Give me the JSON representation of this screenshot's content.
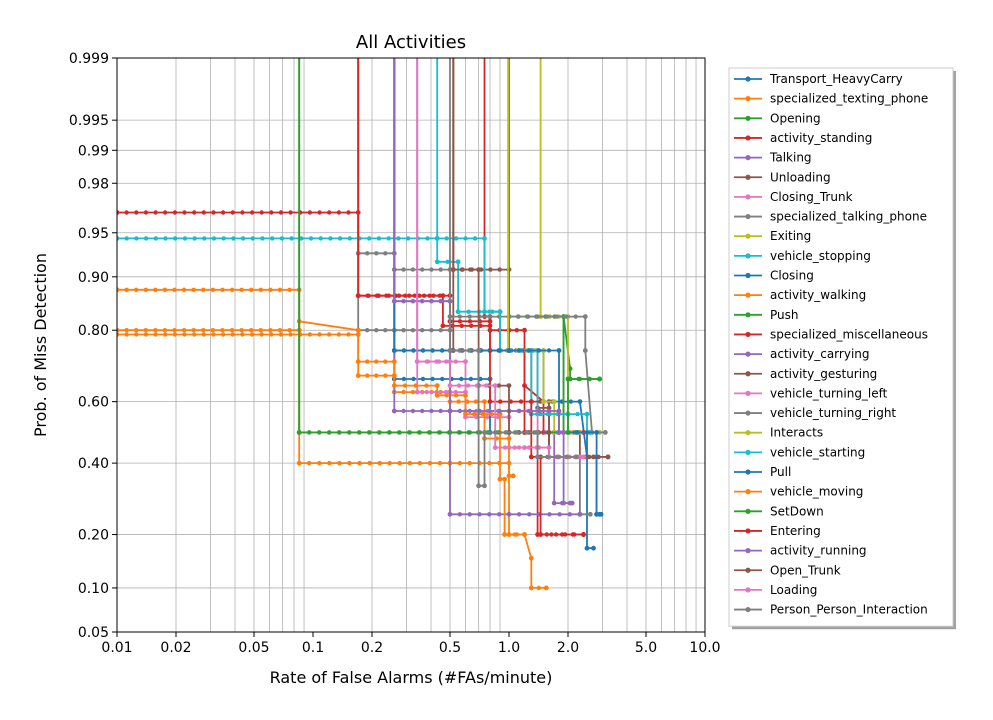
{
  "chart_data": {
    "type": "line",
    "title": "All Activities",
    "xlabel": "Rate of False Alarms (#FAs/minute)",
    "ylabel": "Prob. of Miss Detection",
    "x_scale": "log",
    "y_scale": "normal-deviate",
    "xlim": [
      0.01,
      10.0
    ],
    "ylim": [
      0.05,
      0.999
    ],
    "x_ticks": [
      0.01,
      0.02,
      0.05,
      0.1,
      0.2,
      0.5,
      1.0,
      2.0,
      5.0,
      10.0
    ],
    "x_tick_labels": [
      "0.01",
      "0.02",
      "0.05",
      "0.1",
      "0.2",
      "0.5",
      "1.0",
      "2.0",
      "5.0",
      "10.0"
    ],
    "y_ticks": [
      0.05,
      0.1,
      0.2,
      0.4,
      0.6,
      0.8,
      0.9,
      0.95,
      0.98,
      0.99,
      0.995,
      0.999
    ],
    "y_tick_labels": [
      "0.05",
      "0.10",
      "0.20",
      "0.40",
      "0.60",
      "0.80",
      "0.90",
      "0.95",
      "0.98",
      "0.99",
      "0.995",
      "0.999"
    ],
    "grid": true,
    "legend_position": "right",
    "series": [
      {
        "name": "Transport_HeavyCarry",
        "color": "#1f77b4",
        "points": [
          [
            0.26,
            0.999
          ],
          [
            0.26,
            0.75
          ],
          [
            0.8,
            0.75
          ],
          [
            1.5,
            0.75
          ],
          [
            1.5,
            0.6
          ],
          [
            2.3,
            0.6
          ],
          [
            2.5,
            0.42
          ],
          [
            2.5,
            0.17
          ],
          [
            2.7,
            0.17
          ]
        ]
      },
      {
        "name": "specialized_texting_phone",
        "color": "#ff7f0e",
        "points": [
          [
            0.01,
            0.88
          ],
          [
            0.085,
            0.88
          ],
          [
            0.085,
            0.4
          ],
          [
            0.5,
            0.4
          ],
          [
            1.0,
            0.4
          ],
          [
            1.0,
            0.2
          ],
          [
            1.2,
            0.2
          ],
          [
            1.3,
            0.15
          ],
          [
            1.3,
            0.1
          ],
          [
            1.55,
            0.1
          ]
        ]
      },
      {
        "name": "Opening",
        "color": "#2ca02c",
        "points": [
          [
            0.085,
            0.999
          ],
          [
            0.085,
            0.5
          ],
          [
            0.5,
            0.5
          ],
          [
            1.2,
            0.5
          ],
          [
            1.9,
            0.5
          ],
          [
            1.9,
            0.83
          ],
          [
            2.05,
            0.7
          ],
          [
            2.05,
            0.67
          ],
          [
            2.9,
            0.67
          ]
        ]
      },
      {
        "name": "activity_standing",
        "color": "#d62728",
        "points": [
          [
            0.01,
            0.965
          ],
          [
            0.17,
            0.965
          ],
          [
            0.17,
            0.87
          ],
          [
            0.46,
            0.87
          ],
          [
            0.46,
            0.81
          ],
          [
            0.8,
            0.81
          ],
          [
            0.8,
            0.75
          ],
          [
            1.2,
            0.75
          ],
          [
            1.2,
            0.65
          ],
          [
            1.5,
            0.6
          ],
          [
            1.5,
            0.5
          ],
          [
            2.4,
            0.5
          ]
        ]
      },
      {
        "name": "Talking",
        "color": "#9467bd",
        "points": [
          [
            0.26,
            0.999
          ],
          [
            0.26,
            0.86
          ],
          [
            0.5,
            0.86
          ],
          [
            0.5,
            0.5
          ],
          [
            0.8,
            0.5
          ],
          [
            1.7,
            0.5
          ],
          [
            1.7,
            0.28
          ],
          [
            2.05,
            0.28
          ]
        ]
      },
      {
        "name": "Unloading",
        "color": "#8c564b",
        "points": [
          [
            0.52,
            0.999
          ],
          [
            0.52,
            0.91
          ],
          [
            1.0,
            0.91
          ],
          [
            1.0,
            0.75
          ],
          [
            1.4,
            0.75
          ],
          [
            1.4,
            0.58
          ],
          [
            1.6,
            0.58
          ],
          [
            1.6,
            0.5
          ],
          [
            2.3,
            0.5
          ],
          [
            2.3,
            0.42
          ],
          [
            3.2,
            0.42
          ]
        ]
      },
      {
        "name": "Closing_Trunk",
        "color": "#e377c2",
        "points": [
          [
            0.34,
            0.999
          ],
          [
            0.34,
            0.72
          ],
          [
            0.6,
            0.72
          ],
          [
            0.6,
            0.55
          ],
          [
            1.0,
            0.55
          ],
          [
            1.0,
            0.45
          ],
          [
            1.6,
            0.45
          ],
          [
            1.6,
            0.42
          ],
          [
            2.5,
            0.42
          ]
        ]
      },
      {
        "name": "specialized_talking_phone",
        "color": "#7f7f7f",
        "points": [
          [
            0.17,
            0.999
          ],
          [
            0.17,
            0.8
          ],
          [
            0.26,
            0.8
          ],
          [
            0.5,
            0.8
          ],
          [
            0.5,
            0.75
          ],
          [
            0.7,
            0.75
          ],
          [
            0.7,
            0.5
          ],
          [
            1.0,
            0.5
          ],
          [
            1.6,
            0.5
          ],
          [
            1.6,
            0.42
          ],
          [
            2.3,
            0.42
          ],
          [
            2.3,
            0.25
          ],
          [
            2.6,
            0.25
          ]
        ]
      },
      {
        "name": "Exiting",
        "color": "#bcbd22",
        "points": [
          [
            1.45,
            0.999
          ],
          [
            1.45,
            0.83
          ],
          [
            2.0,
            0.83
          ],
          [
            2.0,
            0.5
          ],
          [
            2.9,
            0.5
          ]
        ]
      },
      {
        "name": "vehicle_stopping",
        "color": "#17becf",
        "points": [
          [
            0.01,
            0.945
          ],
          [
            0.43,
            0.945
          ],
          [
            0.43,
            0.92
          ],
          [
            0.55,
            0.92
          ],
          [
            0.55,
            0.84
          ],
          [
            0.9,
            0.84
          ],
          [
            0.9,
            0.75
          ],
          [
            1.4,
            0.75
          ],
          [
            1.4,
            0.56
          ],
          [
            2.0,
            0.56
          ],
          [
            2.0,
            0.5
          ],
          [
            2.6,
            0.5
          ]
        ]
      },
      {
        "name": "Closing",
        "color": "#1f77b4",
        "points": [
          [
            0.26,
            0.999
          ],
          [
            0.26,
            0.67
          ],
          [
            0.8,
            0.67
          ],
          [
            0.8,
            0.5
          ],
          [
            2.5,
            0.5
          ],
          [
            2.5,
            0.42
          ],
          [
            2.8,
            0.42
          ],
          [
            2.8,
            0.25
          ],
          [
            2.95,
            0.25
          ]
        ]
      },
      {
        "name": "activity_walking",
        "color": "#ff7f0e",
        "points": [
          [
            0.01,
            0.8
          ],
          [
            0.085,
            0.8
          ],
          [
            0.085,
            0.82
          ],
          [
            0.17,
            0.8
          ],
          [
            0.17,
            0.68
          ],
          [
            0.26,
            0.68
          ],
          [
            0.26,
            0.63
          ],
          [
            0.5,
            0.63
          ],
          [
            0.5,
            0.6
          ],
          [
            0.75,
            0.6
          ],
          [
            0.75,
            0.48
          ],
          [
            1.0,
            0.48
          ],
          [
            1.0,
            0.36
          ],
          [
            1.05,
            0.36
          ]
        ]
      },
      {
        "name": "Push",
        "color": "#2ca02c",
        "points": [
          [
            1.0,
            0.999
          ],
          [
            1.0,
            0.83
          ],
          [
            1.9,
            0.83
          ],
          [
            1.9,
            0.5
          ],
          [
            2.2,
            0.5
          ]
        ]
      },
      {
        "name": "specialized_miscellaneous",
        "color": "#d62728",
        "points": [
          [
            0.75,
            0.999
          ],
          [
            0.75,
            0.83
          ],
          [
            0.8,
            0.83
          ],
          [
            0.8,
            0.8
          ],
          [
            1.0,
            0.8
          ],
          [
            1.2,
            0.8
          ],
          [
            1.2,
            0.5
          ],
          [
            1.4,
            0.5
          ],
          [
            1.4,
            0.2
          ],
          [
            2.4,
            0.2
          ]
        ]
      },
      {
        "name": "activity_carrying",
        "color": "#9467bd",
        "points": [
          [
            0.26,
            0.999
          ],
          [
            0.26,
            0.57
          ],
          [
            0.5,
            0.57
          ],
          [
            0.5,
            0.25
          ],
          [
            1.0,
            0.25
          ],
          [
            2.3,
            0.25
          ]
        ]
      },
      {
        "name": "activity_gesturing",
        "color": "#8c564b",
        "points": [
          [
            0.52,
            0.999
          ],
          [
            0.52,
            0.75
          ],
          [
            1.0,
            0.75
          ],
          [
            1.3,
            0.75
          ],
          [
            1.3,
            0.6
          ],
          [
            1.6,
            0.6
          ],
          [
            1.6,
            0.42
          ],
          [
            3.2,
            0.42
          ]
        ]
      },
      {
        "name": "vehicle_turning_left",
        "color": "#e377c2",
        "points": [
          [
            0.34,
            0.999
          ],
          [
            0.34,
            0.63
          ],
          [
            0.6,
            0.63
          ],
          [
            0.6,
            0.57
          ],
          [
            1.0,
            0.57
          ],
          [
            1.4,
            0.57
          ],
          [
            1.4,
            0.42
          ],
          [
            2.3,
            0.42
          ]
        ]
      },
      {
        "name": "vehicle_turning_right",
        "color": "#7f7f7f",
        "points": [
          [
            0.17,
            0.999
          ],
          [
            0.17,
            0.93
          ],
          [
            0.26,
            0.93
          ],
          [
            0.26,
            0.91
          ],
          [
            0.5,
            0.91
          ],
          [
            0.5,
            0.83
          ],
          [
            1.0,
            0.83
          ],
          [
            2.45,
            0.83
          ],
          [
            2.45,
            0.75
          ],
          [
            2.65,
            0.5
          ],
          [
            3.1,
            0.5
          ]
        ]
      },
      {
        "name": "Interacts",
        "color": "#bcbd22",
        "points": [
          [
            0.99,
            0.999
          ],
          [
            0.99,
            0.75
          ],
          [
            1.5,
            0.75
          ],
          [
            1.5,
            0.6
          ],
          [
            1.7,
            0.6
          ],
          [
            1.7,
            0.5
          ],
          [
            2.3,
            0.5
          ]
        ]
      },
      {
        "name": "vehicle_starting",
        "color": "#17becf",
        "points": [
          [
            0.43,
            0.999
          ],
          [
            0.43,
            0.945
          ],
          [
            0.75,
            0.945
          ],
          [
            0.75,
            0.84
          ],
          [
            0.9,
            0.84
          ],
          [
            0.9,
            0.75
          ],
          [
            1.3,
            0.75
          ],
          [
            1.3,
            0.56
          ],
          [
            2.0,
            0.56
          ],
          [
            2.5,
            0.56
          ],
          [
            2.5,
            0.5
          ],
          [
            2.6,
            0.5
          ]
        ]
      },
      {
        "name": "Pull",
        "color": "#1f77b4",
        "points": [
          [
            0.26,
            0.999
          ],
          [
            0.26,
            0.75
          ],
          [
            1.0,
            0.75
          ],
          [
            1.8,
            0.75
          ],
          [
            1.8,
            0.5
          ],
          [
            2.8,
            0.5
          ],
          [
            2.8,
            0.25
          ],
          [
            2.9,
            0.25
          ]
        ]
      },
      {
        "name": "vehicle_moving",
        "color": "#ff7f0e",
        "points": [
          [
            0.01,
            0.79
          ],
          [
            0.17,
            0.79
          ],
          [
            0.17,
            0.72
          ],
          [
            0.26,
            0.72
          ],
          [
            0.26,
            0.65
          ],
          [
            0.43,
            0.65
          ],
          [
            0.43,
            0.62
          ],
          [
            0.6,
            0.62
          ],
          [
            0.6,
            0.56
          ],
          [
            0.9,
            0.56
          ],
          [
            0.9,
            0.35
          ],
          [
            0.95,
            0.35
          ],
          [
            0.95,
            0.2
          ],
          [
            1.2,
            0.2
          ]
        ]
      },
      {
        "name": "SetDown",
        "color": "#2ca02c",
        "points": [
          [
            0.085,
            0.999
          ],
          [
            0.085,
            0.5
          ],
          [
            1.0,
            0.5
          ],
          [
            2.0,
            0.5
          ],
          [
            2.0,
            0.67
          ],
          [
            2.9,
            0.67
          ]
        ]
      },
      {
        "name": "Entering",
        "color": "#d62728",
        "points": [
          [
            0.17,
            0.999
          ],
          [
            0.17,
            0.87
          ],
          [
            0.5,
            0.87
          ],
          [
            0.5,
            0.82
          ],
          [
            0.8,
            0.82
          ],
          [
            0.8,
            0.6
          ],
          [
            1.3,
            0.6
          ],
          [
            1.3,
            0.42
          ],
          [
            1.45,
            0.42
          ],
          [
            1.45,
            0.2
          ],
          [
            2.4,
            0.2
          ]
        ]
      },
      {
        "name": "activity_running",
        "color": "#9467bd",
        "points": [
          [
            0.26,
            0.999
          ],
          [
            0.26,
            0.86
          ],
          [
            0.5,
            0.86
          ],
          [
            0.5,
            0.57
          ],
          [
            1.8,
            0.57
          ],
          [
            1.8,
            0.5
          ],
          [
            1.9,
            0.5
          ],
          [
            1.9,
            0.28
          ],
          [
            2.1,
            0.28
          ]
        ]
      },
      {
        "name": "Open_Trunk",
        "color": "#8c564b",
        "points": [
          [
            0.52,
            0.999
          ],
          [
            0.52,
            0.91
          ],
          [
            0.7,
            0.91
          ],
          [
            0.7,
            0.65
          ],
          [
            1.0,
            0.65
          ],
          [
            1.0,
            0.5
          ],
          [
            1.6,
            0.5
          ],
          [
            1.6,
            0.42
          ],
          [
            2.7,
            0.42
          ]
        ]
      },
      {
        "name": "Loading",
        "color": "#e377c2",
        "points": [
          [
            0.34,
            0.999
          ],
          [
            0.34,
            0.72
          ],
          [
            0.5,
            0.72
          ],
          [
            0.5,
            0.65
          ],
          [
            0.85,
            0.65
          ],
          [
            0.85,
            0.45
          ],
          [
            1.2,
            0.45
          ],
          [
            1.6,
            0.45
          ],
          [
            1.6,
            0.42
          ],
          [
            2.4,
            0.42
          ]
        ]
      },
      {
        "name": "Person_Person_Interaction",
        "color": "#7f7f7f",
        "points": [
          [
            0.5,
            0.999
          ],
          [
            0.5,
            0.75
          ],
          [
            0.7,
            0.75
          ],
          [
            0.7,
            0.33
          ],
          [
            0.75,
            0.33
          ],
          [
            0.75,
            0.5
          ],
          [
            1.4,
            0.5
          ],
          [
            1.4,
            0.42
          ],
          [
            2.2,
            0.42
          ]
        ]
      }
    ]
  }
}
